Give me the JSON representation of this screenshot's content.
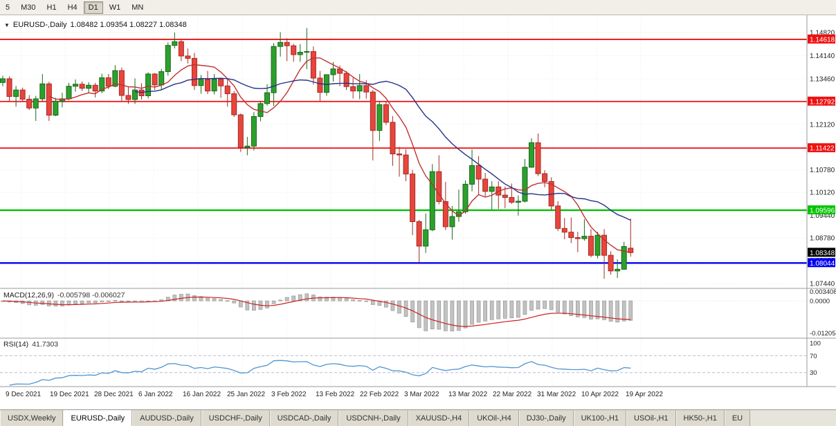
{
  "icons": {
    "dropdown": "▼"
  },
  "toolbar": {
    "timeframes": [
      {
        "label": "5",
        "active": false
      },
      {
        "label": "M30",
        "active": false
      },
      {
        "label": "H1",
        "active": false
      },
      {
        "label": "H4",
        "active": false
      },
      {
        "label": "D1",
        "active": true
      },
      {
        "label": "W1",
        "active": false
      },
      {
        "label": "MN",
        "active": false
      }
    ]
  },
  "chart": {
    "symbol_label": "EURUSD-,Daily",
    "ohlc": "1.08482 1.09354 1.08227 1.08348",
    "price_axis_labels": [
      "1.14820",
      "1.14140",
      "1.13460",
      "1.12780",
      "1.12120",
      "1.11440",
      "1.10780",
      "1.10120",
      "1.09440",
      "1.08780",
      "1.08120",
      "1.07440"
    ],
    "current_price": {
      "label": "1.08348",
      "price": 1.08348,
      "badge_color": "#000000",
      "text_color": "#ffffff"
    },
    "date_labels": [
      "9 Dec 2021",
      "19 Dec 2021",
      "28 Dec 2021",
      "6 Jan 2022",
      "16 Jan 2022",
      "25 Jan 2022",
      "3 Feb 2022",
      "13 Feb 2022",
      "22 Feb 2022",
      "3 Mar 2022",
      "13 Mar 2022",
      "22 Mar 2022",
      "31 Mar 2022",
      "10 Apr 2022",
      "19 Apr 2022"
    ]
  },
  "macd_panel": {
    "label": "MACD(12,26,9)",
    "values": "-0.005798 -0.006027",
    "axis": [
      "0.003408",
      "0.0000",
      "-0.012058"
    ]
  },
  "rsi_panel": {
    "label": "RSI(14)",
    "value": "41.7303",
    "axis": [
      "100",
      "70",
      "30"
    ]
  },
  "tabs": [
    {
      "label": "USDX,Weekly",
      "active": false
    },
    {
      "label": "EURUSD-,Daily",
      "active": true
    },
    {
      "label": "AUDUSD-,Daily",
      "active": false
    },
    {
      "label": "USDCHF-,Daily",
      "active": false
    },
    {
      "label": "USDCAD-,Daily",
      "active": false
    },
    {
      "label": "USDCNH-,Daily",
      "active": false
    },
    {
      "label": "XAUUSD-,H4",
      "active": false
    },
    {
      "label": "UKOil-,H4",
      "active": false
    },
    {
      "label": "DJ30-,Daily",
      "active": false
    },
    {
      "label": "UK100-,H1",
      "active": false
    },
    {
      "label": "USOil-,H1",
      "active": false
    },
    {
      "label": "HK50-,H1",
      "active": false
    },
    {
      "label": "EU",
      "active": false
    }
  ],
  "colors": {
    "up_fill": "#2ca02c",
    "up_border": "#1a661a",
    "down_fill": "#e8453c",
    "down_border": "#a22b24",
    "ma_fast": "#c03030",
    "ma_slow": "#243089",
    "grid": "#ebebeb",
    "separator": "#9a9a9a",
    "axis_text": "#222222",
    "macd_bar": "#c2c2c2",
    "macd_bar_border": "#979797",
    "macd_signal": "#cc2222",
    "rsi_line": "#4f94d4",
    "rsi_level": "#b9b9cf"
  },
  "chart_data": {
    "type": "candlestick",
    "symbol": "EURUSD-",
    "timeframe": "Daily",
    "current": {
      "open": 1.08482,
      "high": 1.09354,
      "low": 1.08227,
      "close": 1.08348
    },
    "y_range": [
      1.0744,
      1.1482
    ],
    "levels": [
      {
        "price": 1.14618,
        "label": "1.14618",
        "color": "#ee1111",
        "width": 1.8
      },
      {
        "price": 1.12792,
        "label": "1.12792",
        "color": "#ee1111",
        "width": 1.8
      },
      {
        "price": 1.11422,
        "label": "1.11422",
        "color": "#ee1111",
        "width": 1.8
      },
      {
        "price": 1.09596,
        "label": "1.09596",
        "color": "#00c300",
        "width": 2.4
      },
      {
        "price": 1.08044,
        "label": "1.08044",
        "color": "#0000ee",
        "width": 2.4
      }
    ],
    "moving_averages": [
      {
        "period": 8,
        "color": "#c03030"
      },
      {
        "period": 21,
        "color": "#243089"
      }
    ],
    "macd": {
      "fast": 12,
      "slow": 26,
      "signal": 9,
      "value": -0.005798,
      "signal_value": -0.006027,
      "range": [
        -0.012058,
        0.003408
      ]
    },
    "rsi": {
      "period": 14,
      "value": 41.7303,
      "levels": [
        70,
        30
      ]
    },
    "candles": [
      [
        1.1335,
        1.1355,
        1.1324,
        1.1346
      ],
      [
        1.1346,
        1.1353,
        1.128,
        1.1294
      ],
      [
        1.1294,
        1.1325,
        1.1264,
        1.1313
      ],
      [
        1.1313,
        1.132,
        1.1278,
        1.1286
      ],
      [
        1.1286,
        1.1298,
        1.1254,
        1.126
      ],
      [
        1.126,
        1.1296,
        1.1222,
        1.1287
      ],
      [
        1.1287,
        1.136,
        1.128,
        1.1331
      ],
      [
        1.1331,
        1.1337,
        1.1222,
        1.1239
      ],
      [
        1.1239,
        1.129,
        1.1236,
        1.128
      ],
      [
        1.128,
        1.1305,
        1.1262,
        1.1287
      ],
      [
        1.1287,
        1.1334,
        1.1283,
        1.1324
      ],
      [
        1.1324,
        1.1344,
        1.1308,
        1.133
      ],
      [
        1.133,
        1.1338,
        1.131,
        1.1318
      ],
      [
        1.1318,
        1.1336,
        1.1305,
        1.1327
      ],
      [
        1.1327,
        1.1334,
        1.1291,
        1.131
      ],
      [
        1.131,
        1.1361,
        1.1304,
        1.1349
      ],
      [
        1.1349,
        1.136,
        1.1316,
        1.1324
      ],
      [
        1.1324,
        1.1386,
        1.1321,
        1.137
      ],
      [
        1.137,
        1.1379,
        1.1279,
        1.1297
      ],
      [
        1.1297,
        1.1323,
        1.1272,
        1.1285
      ],
      [
        1.1285,
        1.1347,
        1.1272,
        1.1313
      ],
      [
        1.1313,
        1.1333,
        1.1285,
        1.1296
      ],
      [
        1.1296,
        1.1365,
        1.1288,
        1.136
      ],
      [
        1.136,
        1.1363,
        1.1313,
        1.1328
      ],
      [
        1.1328,
        1.1375,
        1.1314,
        1.1367
      ],
      [
        1.1367,
        1.1453,
        1.1355,
        1.1444
      ],
      [
        1.1444,
        1.1482,
        1.1435,
        1.1455
      ],
      [
        1.1455,
        1.146,
        1.1398,
        1.1413
      ],
      [
        1.1413,
        1.1435,
        1.1391,
        1.1406
      ],
      [
        1.1406,
        1.1422,
        1.1313,
        1.1326
      ],
      [
        1.1326,
        1.1357,
        1.1302,
        1.1344
      ],
      [
        1.1344,
        1.1369,
        1.1301,
        1.131
      ],
      [
        1.131,
        1.136,
        1.13,
        1.1345
      ],
      [
        1.1345,
        1.1349,
        1.129,
        1.1325
      ],
      [
        1.1325,
        1.1345,
        1.1264,
        1.1302
      ],
      [
        1.1302,
        1.131,
        1.1234,
        1.124
      ],
      [
        1.124,
        1.1244,
        1.1131,
        1.1144
      ],
      [
        1.1144,
        1.1175,
        1.1121,
        1.1148
      ],
      [
        1.1148,
        1.1248,
        1.1135,
        1.1235
      ],
      [
        1.1235,
        1.1279,
        1.1221,
        1.1273
      ],
      [
        1.1273,
        1.133,
        1.1267,
        1.1305
      ],
      [
        1.1305,
        1.1451,
        1.1266,
        1.1441
      ],
      [
        1.1441,
        1.1483,
        1.1411,
        1.1453
      ],
      [
        1.1453,
        1.1465,
        1.1398,
        1.1443
      ],
      [
        1.1443,
        1.1449,
        1.1396,
        1.1417
      ],
      [
        1.1417,
        1.1448,
        1.1396,
        1.1424
      ],
      [
        1.1424,
        1.1495,
        1.1374,
        1.1426
      ],
      [
        1.1426,
        1.1441,
        1.1329,
        1.1348
      ],
      [
        1.1348,
        1.1369,
        1.1279,
        1.1306
      ],
      [
        1.1306,
        1.1359,
        1.1296,
        1.1358
      ],
      [
        1.1358,
        1.1395,
        1.1338,
        1.1375
      ],
      [
        1.1375,
        1.1385,
        1.1324,
        1.1362
      ],
      [
        1.1362,
        1.1369,
        1.1313,
        1.1323
      ],
      [
        1.1323,
        1.1349,
        1.1288,
        1.131
      ],
      [
        1.131,
        1.136,
        1.1286,
        1.1326
      ],
      [
        1.1326,
        1.1342,
        1.1287,
        1.1307
      ],
      [
        1.1307,
        1.1313,
        1.1106,
        1.1194
      ],
      [
        1.1194,
        1.1279,
        1.1163,
        1.127
      ],
      [
        1.127,
        1.128,
        1.121,
        1.1218
      ],
      [
        1.1218,
        1.1236,
        1.109,
        1.1125
      ],
      [
        1.1125,
        1.1146,
        1.1058,
        1.1122
      ],
      [
        1.1122,
        1.1139,
        1.1045,
        1.1066
      ],
      [
        1.1066,
        1.1078,
        1.0886,
        1.0926
      ],
      [
        1.0926,
        1.0931,
        1.0806,
        1.0854
      ],
      [
        1.0854,
        1.095,
        1.0834,
        1.0902
      ],
      [
        1.0902,
        1.1095,
        1.0898,
        1.1073
      ],
      [
        1.1073,
        1.1121,
        1.0977,
        1.0985
      ],
      [
        1.0985,
        1.1043,
        1.0901,
        1.0911
      ],
      [
        1.0911,
        1.0972,
        1.0873,
        1.0941
      ],
      [
        1.0941,
        1.102,
        1.0926,
        1.0955
      ],
      [
        1.0955,
        1.1047,
        1.0949,
        1.1036
      ],
      [
        1.1036,
        1.1138,
        1.1015,
        1.1091
      ],
      [
        1.1091,
        1.1119,
        1.1003,
        1.1051
      ],
      [
        1.1051,
        1.1069,
        1.1,
        1.1015
      ],
      [
        1.1015,
        1.1045,
        1.0961,
        1.1028
      ],
      [
        1.1028,
        1.1045,
        1.0963,
        1.1004
      ],
      [
        1.1004,
        1.1029,
        1.0965,
        1.0997
      ],
      [
        1.0997,
        1.1038,
        1.0978,
        1.0983
      ],
      [
        1.0983,
        1.1003,
        1.0944,
        1.0986
      ],
      [
        1.0986,
        1.111,
        1.0982,
        1.1086
      ],
      [
        1.1086,
        1.1171,
        1.1084,
        1.1158
      ],
      [
        1.1158,
        1.1185,
        1.106,
        1.1067
      ],
      [
        1.1067,
        1.1077,
        1.1027,
        1.1044
      ],
      [
        1.1044,
        1.1056,
        1.096,
        1.0972
      ],
      [
        1.0972,
        1.0986,
        1.0898,
        1.0906
      ],
      [
        1.0906,
        1.0937,
        1.0874,
        1.0895
      ],
      [
        1.0895,
        1.0938,
        1.0863,
        1.0879
      ],
      [
        1.0879,
        1.0896,
        1.0836,
        1.0876
      ],
      [
        1.0876,
        1.0933,
        1.087,
        1.0883
      ],
      [
        1.0883,
        1.0904,
        1.0821,
        1.0827
      ],
      [
        1.0827,
        1.0896,
        1.0818,
        1.0886
      ],
      [
        1.0886,
        1.0904,
        1.0758,
        1.0827
      ],
      [
        1.0827,
        1.0839,
        1.077,
        1.0781
      ],
      [
        1.0781,
        1.0815,
        1.076,
        1.0786
      ],
      [
        1.0786,
        1.0867,
        1.0785,
        1.0853
      ],
      [
        1.0848,
        1.0935,
        1.0823,
        1.0835
      ]
    ]
  }
}
